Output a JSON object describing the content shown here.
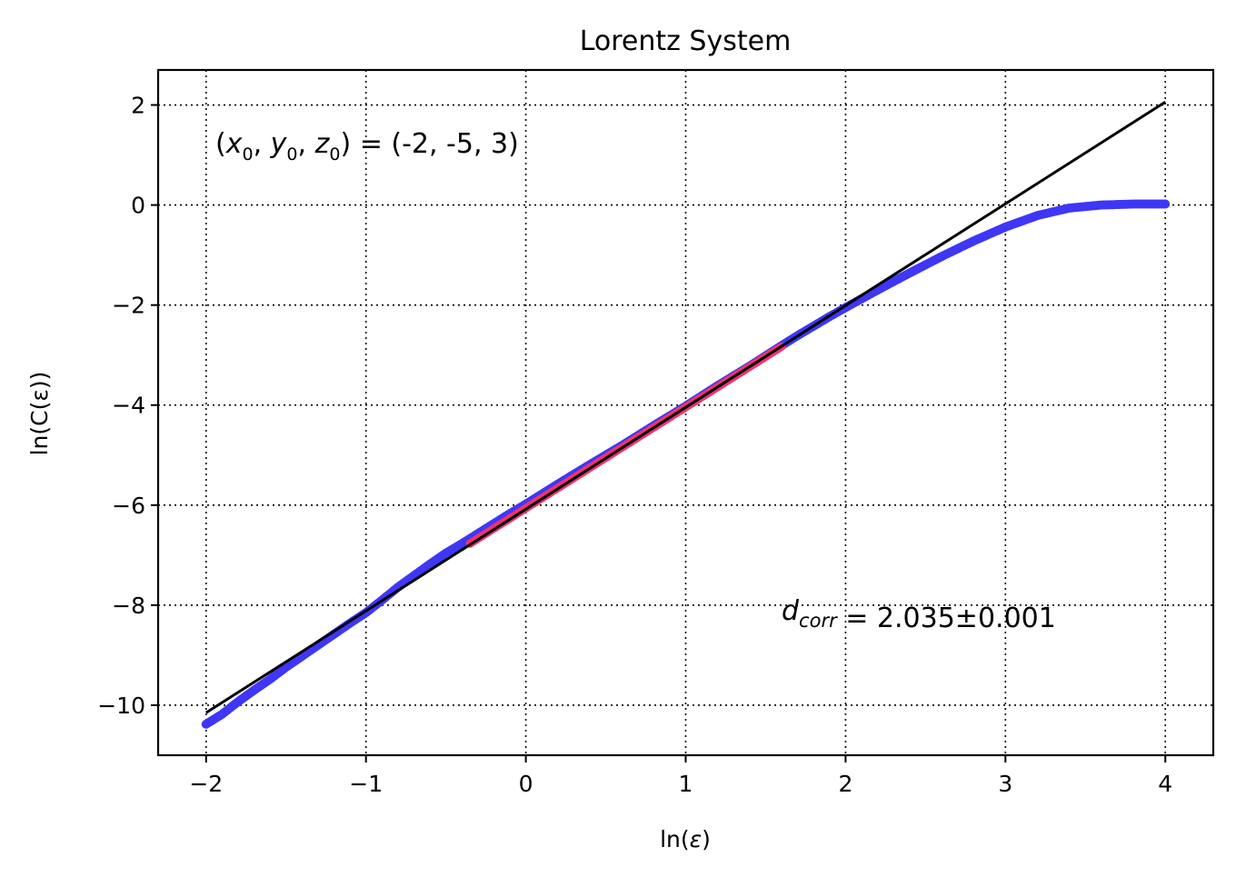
{
  "chart_data": {
    "type": "scatter",
    "title": "Lorentz System",
    "xlabel_text": "ln(",
    "xlabel_symbol": "ε",
    "xlabel_close": ")",
    "ylabel_text": "ln(C(ε))",
    "xlim": [
      -2.3,
      4.3
    ],
    "ylim": [
      -11.0,
      2.7
    ],
    "xticks": [
      -2,
      -1,
      0,
      1,
      2,
      3,
      4
    ],
    "yticks": [
      2,
      0,
      -2,
      -4,
      -6,
      -8,
      -10
    ],
    "xtick_labels": [
      "−2",
      "−1",
      "0",
      "1",
      "2",
      "3",
      "4"
    ],
    "ytick_labels": [
      "2",
      "0",
      "−2",
      "−4",
      "−6",
      "−8",
      "−10"
    ],
    "grid": true,
    "colors": {
      "data": "#3f37f5",
      "fit_region": "#f0336f",
      "fit_line": "#000000"
    },
    "series": [
      {
        "role": "data",
        "x": [
          -2.0,
          -1.9,
          -1.8,
          -1.7,
          -1.6,
          -1.5,
          -1.4,
          -1.3,
          -1.2,
          -1.1,
          -1.0,
          -0.9,
          -0.8,
          -0.7,
          -0.6,
          -0.5,
          -0.4,
          -0.3,
          -0.2,
          -0.1,
          0.0,
          0.2,
          0.4,
          0.6,
          0.8,
          1.0,
          1.2,
          1.4,
          1.6,
          1.7,
          1.8,
          1.9,
          2.0,
          2.2,
          2.4,
          2.6,
          2.8,
          3.0,
          3.2,
          3.4,
          3.6,
          3.8,
          4.0
        ],
        "y": [
          -10.38,
          -10.18,
          -9.93,
          -9.7,
          -9.48,
          -9.24,
          -9.02,
          -8.8,
          -8.58,
          -8.36,
          -8.15,
          -7.9,
          -7.64,
          -7.41,
          -7.18,
          -6.96,
          -6.77,
          -6.57,
          -6.37,
          -6.17,
          -5.98,
          -5.58,
          -5.19,
          -4.81,
          -4.41,
          -4.02,
          -3.61,
          -3.22,
          -2.81,
          -2.61,
          -2.42,
          -2.23,
          -2.05,
          -1.7,
          -1.36,
          -1.03,
          -0.72,
          -0.44,
          -0.21,
          -0.06,
          0.0,
          0.02,
          0.02
        ]
      },
      {
        "role": "fit-region",
        "x": [
          -0.35,
          1.6
        ],
        "y": [
          -6.77,
          -2.83
        ]
      },
      {
        "role": "fit-line",
        "x": [
          -2.0,
          4.0
        ],
        "y": [
          -10.15,
          2.06
        ]
      }
    ],
    "annotations": {
      "initial_condition_value": " = (-2, -5, 3)",
      "dcorr_value": " = 2.035±0.001"
    }
  }
}
